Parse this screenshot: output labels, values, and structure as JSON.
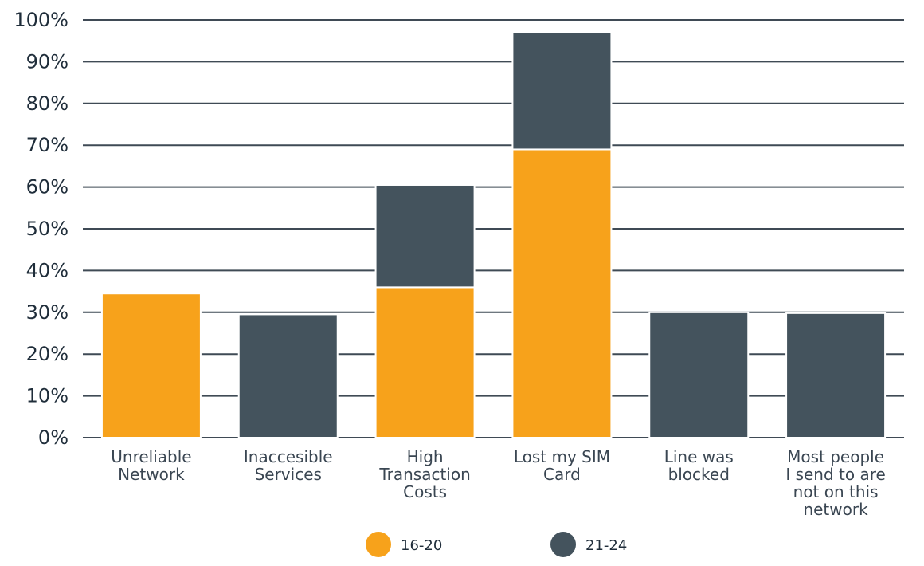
{
  "chart_data": {
    "type": "bar",
    "stacked": true,
    "categories": [
      "Unreliable Network",
      "Inaccesible Services",
      "High Transaction Costs",
      "Lost my SIM Card",
      "Line was blocked",
      "Most people I send to are not on this network"
    ],
    "category_lines": [
      [
        "Unreliable",
        "Network"
      ],
      [
        "Inaccesible",
        "Services"
      ],
      [
        "High",
        "Transaction",
        "Costs"
      ],
      [
        "Lost my SIM",
        "Card"
      ],
      [
        "Line was",
        "blocked"
      ],
      [
        "Most people",
        "I send to are",
        "not on this",
        "network"
      ]
    ],
    "series": [
      {
        "name": "16-20",
        "color": "#F7A21B",
        "values": [
          34.5,
          0,
          36,
          69,
          0,
          0
        ]
      },
      {
        "name": "21-24",
        "color": "#44535D",
        "values": [
          0,
          29.5,
          24.5,
          28,
          30,
          29.8
        ]
      }
    ],
    "ylim": [
      0,
      100
    ],
    "yticks": [
      0,
      10,
      20,
      30,
      40,
      50,
      60,
      70,
      80,
      90,
      100
    ],
    "ytick_labels": [
      "0%",
      "10%",
      "20%",
      "30%",
      "40%",
      "50%",
      "60%",
      "70%",
      "80%",
      "90%",
      "100%"
    ],
    "grid": true,
    "legend_position": "bottom-center",
    "title": "",
    "xlabel": "",
    "ylabel": ""
  }
}
